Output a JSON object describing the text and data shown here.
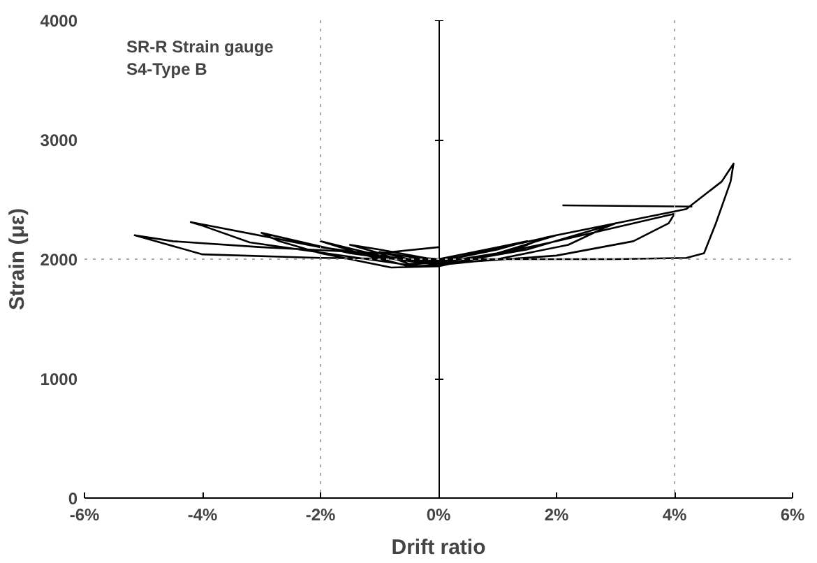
{
  "chart_data": {
    "type": "line",
    "title": "SR-R Strain gauge",
    "subtitle": "S4-Type B",
    "xlabel": "Drift ratio",
    "ylabel": "Strain (με)",
    "xlim": [
      -6,
      6
    ],
    "ylim": [
      0,
      4000
    ],
    "xticks": [
      {
        "value": -6,
        "label": "-6%"
      },
      {
        "value": -4,
        "label": "-4%"
      },
      {
        "value": -2,
        "label": "-2%"
      },
      {
        "value": 0,
        "label": "0%"
      },
      {
        "value": 2,
        "label": "2%"
      },
      {
        "value": 4,
        "label": "4%"
      },
      {
        "value": 6,
        "label": "6%"
      }
    ],
    "yticks": [
      0,
      1000,
      2000,
      3000,
      4000
    ],
    "grid": false,
    "line_style": "solid",
    "ref_lines": [
      {
        "axis": "x",
        "value": -2,
        "label": null,
        "color": "#aaaaaa",
        "line_style": "dotted"
      },
      {
        "axis": "x",
        "value": 4,
        "label": null,
        "color": "#aaaaaa",
        "line_style": "dotted"
      },
      {
        "axis": "y",
        "value": 2000,
        "label": null,
        "color": "#aaaaaa",
        "line_style": "dotted"
      }
    ],
    "series": [
      {
        "color": "#000000",
        "x": [
          0,
          0.5,
          1,
          0.5,
          0,
          -0.5,
          -1,
          -0.5,
          0,
          1,
          1.5,
          1,
          0.5,
          0,
          -1,
          -1.5,
          -1,
          -0.5,
          0,
          1,
          2,
          1.8,
          1.2,
          0.5,
          0,
          -1,
          -2,
          -1.8,
          -1.2,
          -0.5,
          0,
          1.5,
          3,
          2.8,
          2.2,
          1,
          0,
          -1.5,
          -3,
          -2.7,
          -2,
          -0.8,
          0,
          2,
          4,
          3.9,
          3.3,
          2,
          0,
          -2,
          -4.2,
          -4,
          -3.2,
          -1.5,
          -0.5,
          0,
          2,
          4.2,
          4.8,
          5.0,
          4.95,
          4.7,
          4.5,
          4.2,
          3,
          0,
          -2,
          -4,
          -5.15,
          -4.5,
          -3,
          -1,
          0,
          null,
          2.1,
          4.3
        ],
        "values": [
          2000,
          2050,
          2100,
          2050,
          2000,
          2020,
          2060,
          2000,
          1980,
          2080,
          2150,
          2100,
          2030,
          1990,
          2080,
          2120,
          2050,
          1960,
          1970,
          2050,
          2200,
          2180,
          2060,
          1990,
          1960,
          2030,
          2150,
          2120,
          2030,
          1940,
          1950,
          2080,
          2300,
          2260,
          2120,
          2000,
          1950,
          2050,
          2220,
          2150,
          2050,
          1930,
          1940,
          2150,
          2380,
          2300,
          2150,
          2030,
          1960,
          2100,
          2310,
          2280,
          2140,
          2020,
          1950,
          1980,
          2200,
          2420,
          2650,
          2800,
          2650,
          2300,
          2050,
          2010,
          2000,
          2000,
          2010,
          2040,
          2200,
          2150,
          2100,
          2050,
          2100,
          null,
          2450,
          2440
        ]
      }
    ]
  }
}
